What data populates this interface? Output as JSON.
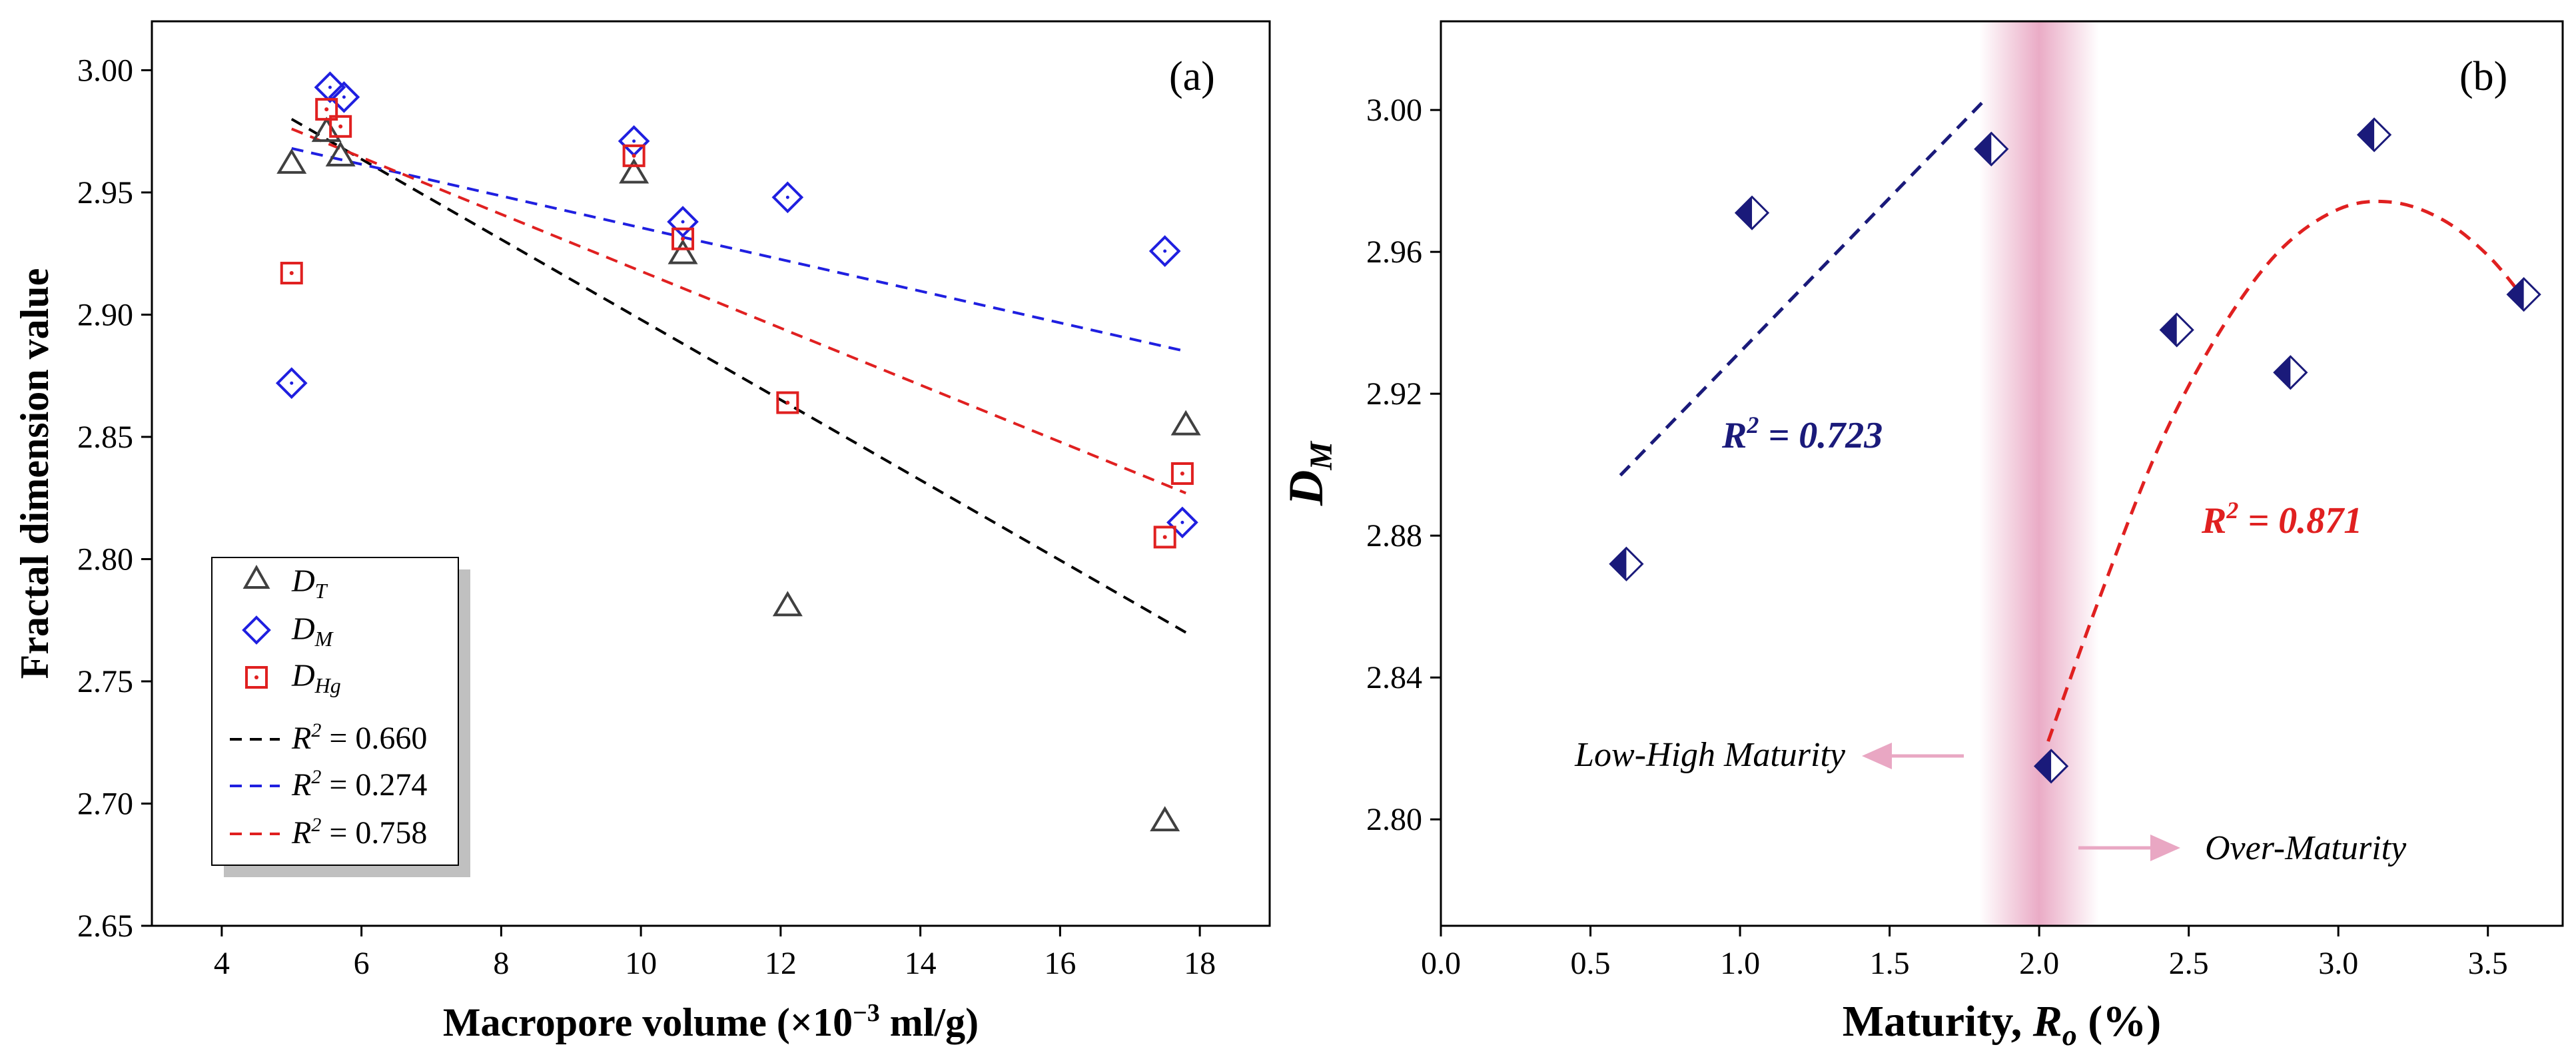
{
  "chart_data": [
    {
      "panel": "(a)",
      "type": "scatter",
      "xlabel_main": "Macropore volume (×10",
      "xlabel_sup": "−3",
      "xlabel_tail": " ml/g)",
      "ylabel": "Fractal dimension value",
      "xlim": [
        3,
        19
      ],
      "ylim": [
        2.65,
        3.02
      ],
      "xticks": [
        4,
        6,
        8,
        10,
        12,
        14,
        16,
        18
      ],
      "yticks": [
        2.65,
        2.7,
        2.75,
        2.8,
        2.85,
        2.9,
        2.95,
        3.0
      ],
      "tick_labels_x": [
        "4",
        "6",
        "8",
        "10",
        "12",
        "14",
        "16",
        "18"
      ],
      "tick_labels_y": [
        "2.65",
        "2.70",
        "2.75",
        "2.80",
        "2.85",
        "2.90",
        "2.95",
        "3.00"
      ],
      "series": [
        {
          "name": "D_T",
          "label_main": "D",
          "label_sub": "T",
          "marker": "triangle",
          "color": "#404040",
          "x": [
            5.0,
            5.5,
            5.7,
            9.9,
            10.6,
            12.1,
            17.5,
            17.8
          ],
          "y": [
            2.962,
            2.975,
            2.965,
            2.958,
            2.925,
            2.781,
            2.693,
            2.855
          ]
        },
        {
          "name": "D_M",
          "label_main": "D",
          "label_sub": "M",
          "marker": "diamond",
          "color": "#1f1fe0",
          "x": [
            5.0,
            5.55,
            5.75,
            9.9,
            10.6,
            12.1,
            17.5,
            17.75
          ],
          "y": [
            2.872,
            2.993,
            2.989,
            2.971,
            2.938,
            2.948,
            2.926,
            2.815
          ]
        },
        {
          "name": "D_Hg",
          "label_main": "D",
          "label_sub": "Hg",
          "marker": "square",
          "color": "#e02020",
          "x": [
            5.0,
            5.5,
            5.7,
            9.9,
            10.6,
            12.1,
            17.5,
            17.75
          ],
          "y": [
            2.917,
            2.984,
            2.977,
            2.965,
            2.931,
            2.864,
            2.809,
            2.835
          ]
        }
      ],
      "fits": [
        {
          "label_pre": "R",
          "label_sup": "2",
          "label_post": " = 0.660",
          "color": "#000000",
          "x": [
            5.0,
            17.8
          ],
          "y": [
            2.98,
            2.77
          ]
        },
        {
          "label_pre": "R",
          "label_sup": "2",
          "label_post": " = 0.274",
          "color": "#1f1fe0",
          "x": [
            5.0,
            17.8
          ],
          "y": [
            2.968,
            2.885
          ]
        },
        {
          "label_pre": "R",
          "label_sup": "2",
          "label_post": " = 0.758",
          "color": "#e02020",
          "x": [
            5.0,
            17.8
          ],
          "y": [
            2.976,
            2.827
          ]
        }
      ],
      "legend_position": "bottom-left"
    },
    {
      "panel": "(b)",
      "type": "scatter",
      "xlabel_main": "Maturity, ",
      "xlabel_italic": "R",
      "xlabel_sub": "o",
      "xlabel_tail": " (%)",
      "ylabel_main": "D",
      "ylabel_sub": "M",
      "xlim": [
        0.0,
        3.75
      ],
      "ylim": [
        2.77,
        3.025
      ],
      "xticks": [
        0.0,
        0.5,
        1.0,
        1.5,
        2.0,
        2.5,
        3.0,
        3.5
      ],
      "yticks": [
        2.8,
        2.84,
        2.88,
        2.92,
        2.96,
        3.0
      ],
      "tick_labels_x": [
        "0.0",
        "0.5",
        "1.0",
        "1.5",
        "2.0",
        "2.5",
        "3.0",
        "3.5"
      ],
      "tick_labels_y": [
        "2.80",
        "2.84",
        "2.88",
        "2.92",
        "2.96",
        "3.00"
      ],
      "points": {
        "x": [
          0.62,
          1.04,
          1.84,
          2.04,
          2.46,
          2.84,
          3.12,
          3.62
        ],
        "y": [
          2.872,
          2.971,
          2.989,
          2.815,
          2.938,
          2.926,
          2.993,
          2.948
        ],
        "color": "#1a1a7a"
      },
      "fits": [
        {
          "label_pre": "R",
          "label_sup": "2",
          "label_post": " = 0.723",
          "color": "#1a1a7a",
          "kind": "linear",
          "x": [
            0.6,
            1.82
          ],
          "y": [
            2.897,
            3.003
          ]
        },
        {
          "label_pre": "R",
          "label_sup": "2",
          "label_post": " = 0.871",
          "color": "#e02020",
          "kind": "curve",
          "x": [
            2.03,
            2.2,
            2.4,
            2.6,
            2.8,
            3.0,
            3.18,
            3.35,
            3.5,
            3.62
          ],
          "y": [
            2.822,
            2.862,
            2.905,
            2.937,
            2.96,
            2.972,
            2.974,
            2.969,
            2.959,
            2.947
          ]
        }
      ],
      "band": {
        "x_center": 2.0,
        "x_halfwidth": 0.2,
        "color": "#e9a7c3"
      },
      "annotations": {
        "low_high": "Low-High Maturity",
        "over": "Over-Maturity"
      }
    }
  ]
}
